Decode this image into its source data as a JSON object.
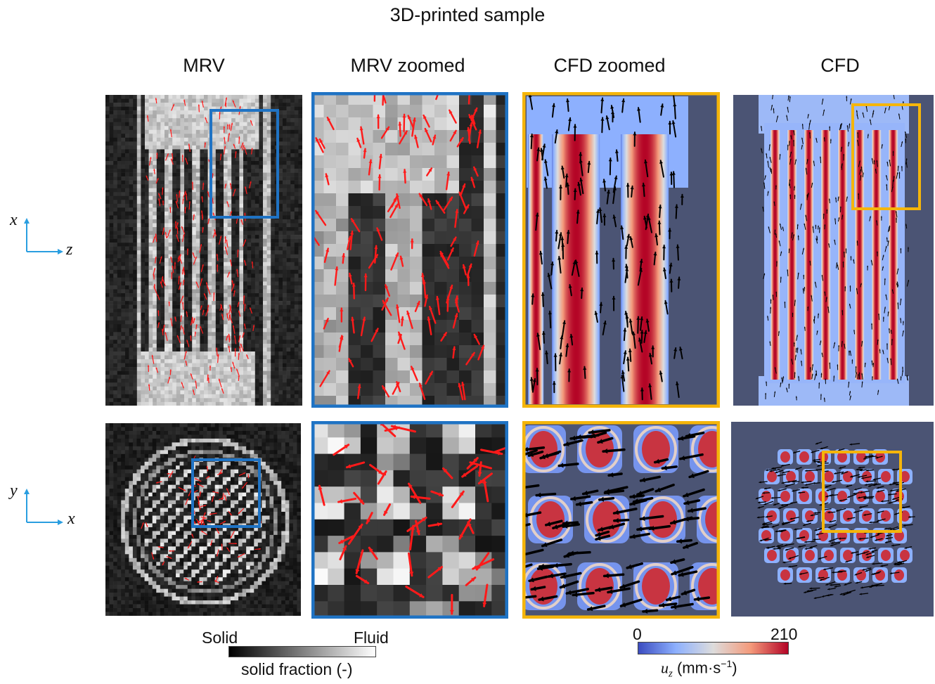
{
  "figure": {
    "title": "3D-printed sample",
    "columns": [
      "MRV",
      "MRV zoomed",
      "CFD zoomed",
      "CFD"
    ],
    "axes_top": {
      "vertical": "x",
      "horizontal": "z"
    },
    "axes_bottom": {
      "vertical": "y",
      "horizontal": "x"
    }
  },
  "colorbar_gray": {
    "left_label": "Solid",
    "right_label": "Fluid",
    "title": "solid fraction (-)"
  },
  "colorbar_velocity": {
    "min_label": "0",
    "max_label": "210",
    "title_symbol": "u",
    "title_subscript": "z",
    "title_units": "(mm·s",
    "title_exp": "−1",
    "title_close": ")"
  },
  "colors": {
    "mrv_box": "#1f73c4",
    "cfd_box": "#f5b50a",
    "vector_red": "#ff1a1a",
    "axis_blue": "#2a9ee0",
    "cfd_background": "#4b5474"
  }
}
